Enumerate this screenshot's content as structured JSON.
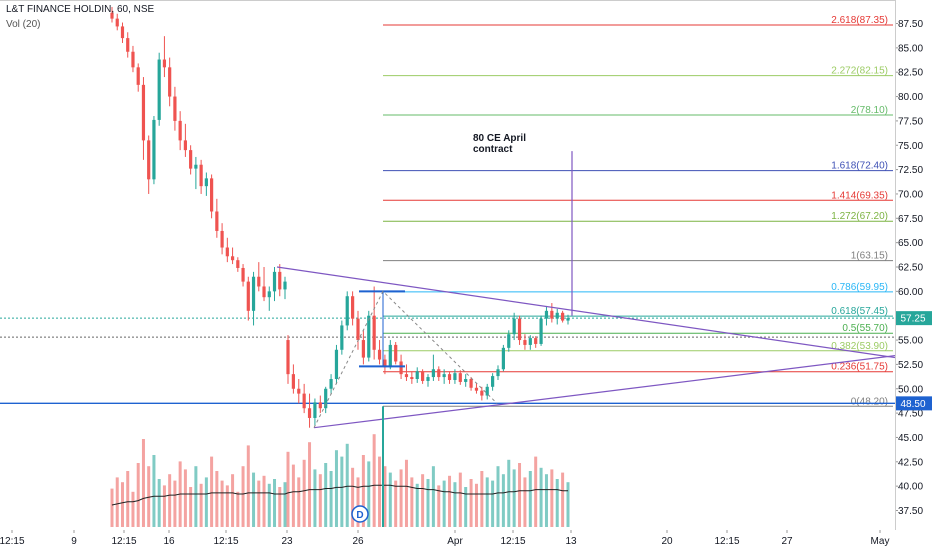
{
  "header": {
    "title": "L&T FINANCE HOLDIN, 60, NSE",
    "volume_label": "Vol (20)"
  },
  "annotation": {
    "line1": "80 CE April",
    "line2": "contract"
  },
  "price_tags": {
    "last": "57.25",
    "support": "48.50"
  },
  "event_badge": "D",
  "colors": {
    "up": "#26a69a",
    "down": "#ef5350",
    "vol_up": "#80cbc4",
    "vol_down": "#f4a3a1",
    "triangle": "#7e57c2",
    "support": "#1e62d0",
    "box": "#1e62d0"
  },
  "chart_data": {
    "type": "candlestick",
    "symbol": "L&T FINANCE HOLDIN",
    "interval": "60",
    "exchange": "NSE",
    "y_axis": {
      "ylim": [
        35.5,
        89.5
      ],
      "ticks": [
        "37.50",
        "40.00",
        "42.50",
        "45.00",
        "47.50",
        "50.00",
        "52.50",
        "55.00",
        "57.50",
        "60.00",
        "62.50",
        "65.00",
        "67.50",
        "70.00",
        "72.50",
        "75.00",
        "77.50",
        "80.00",
        "82.50",
        "85.00",
        "87.50"
      ]
    },
    "x_axis": {
      "ticks": [
        "12:15",
        "9",
        "12:15",
        "16",
        "12:15",
        "23",
        "26",
        "Apr",
        "12:15",
        "13",
        "20",
        "12:15",
        "27",
        "May"
      ]
    },
    "fibonacci_levels": [
      {
        "label": "2.618(87.35)",
        "value": 87.35,
        "color": "#e53935"
      },
      {
        "label": "2.272(82.15)",
        "value": 82.15,
        "color": "#9ccc65"
      },
      {
        "label": "2(78.10)",
        "value": 78.1,
        "color": "#66bb6a"
      },
      {
        "label": "1.618(72.40)",
        "value": 72.4,
        "color": "#3f51b5"
      },
      {
        "label": "1.414(69.35)",
        "value": 69.35,
        "color": "#e53935"
      },
      {
        "label": "1.272(67.20)",
        "value": 67.2,
        "color": "#7cb342"
      },
      {
        "label": "1(63.15)",
        "value": 63.15,
        "color": "#808080"
      },
      {
        "label": "0.786(59.95)",
        "value": 59.95,
        "color": "#29b6f6"
      },
      {
        "label": "0.618(57.45)",
        "value": 57.45,
        "color": "#26a69a"
      },
      {
        "label": "0.5(55.70)",
        "value": 55.7,
        "color": "#4caf50"
      },
      {
        "label": "0.382(53.90)",
        "value": 53.9,
        "color": "#9ccc65"
      },
      {
        "label": "0.236(51.75)",
        "value": 51.75,
        "color": "#e53935"
      },
      {
        "label": "0(48.20)",
        "value": 48.2,
        "color": "#808080"
      }
    ],
    "last_price": 57.25,
    "support_level": 48.5,
    "candles": [
      {
        "o": 88.6,
        "h": 89.2,
        "l": 87.6,
        "c": 88.0
      },
      {
        "o": 88.0,
        "h": 88.5,
        "l": 86.8,
        "c": 87.2
      },
      {
        "o": 87.2,
        "h": 87.6,
        "l": 85.5,
        "c": 86.0
      },
      {
        "o": 86.0,
        "h": 86.6,
        "l": 84.0,
        "c": 84.6
      },
      {
        "o": 84.6,
        "h": 85.2,
        "l": 82.5,
        "c": 83.0
      },
      {
        "o": 83.0,
        "h": 83.4,
        "l": 80.5,
        "c": 81.2
      },
      {
        "o": 81.2,
        "h": 82.0,
        "l": 73.5,
        "c": 75.5
      },
      {
        "o": 75.5,
        "h": 76.0,
        "l": 70.0,
        "c": 71.5
      },
      {
        "o": 71.5,
        "h": 78.0,
        "l": 71.0,
        "c": 77.6
      },
      {
        "o": 77.6,
        "h": 84.5,
        "l": 77.0,
        "c": 83.8
      },
      {
        "o": 83.8,
        "h": 86.2,
        "l": 82.0,
        "c": 83.0
      },
      {
        "o": 83.0,
        "h": 84.0,
        "l": 79.0,
        "c": 80.0
      },
      {
        "o": 80.0,
        "h": 81.0,
        "l": 76.5,
        "c": 77.5
      },
      {
        "o": 77.5,
        "h": 78.5,
        "l": 74.5,
        "c": 75.5
      },
      {
        "o": 75.5,
        "h": 77.2,
        "l": 73.8,
        "c": 74.5
      },
      {
        "o": 74.5,
        "h": 75.0,
        "l": 72.0,
        "c": 72.6
      },
      {
        "o": 72.6,
        "h": 73.8,
        "l": 70.5,
        "c": 73.0
      },
      {
        "o": 73.0,
        "h": 73.5,
        "l": 70.0,
        "c": 70.8
      },
      {
        "o": 70.8,
        "h": 72.2,
        "l": 69.8,
        "c": 71.6
      },
      {
        "o": 71.6,
        "h": 72.0,
        "l": 67.5,
        "c": 68.2
      },
      {
        "o": 68.2,
        "h": 69.5,
        "l": 65.5,
        "c": 66.2
      },
      {
        "o": 66.2,
        "h": 67.0,
        "l": 63.8,
        "c": 64.5
      },
      {
        "o": 64.5,
        "h": 65.5,
        "l": 63.0,
        "c": 63.6
      },
      {
        "o": 63.6,
        "h": 64.5,
        "l": 62.8,
        "c": 63.2
      },
      {
        "o": 63.2,
        "h": 63.5,
        "l": 62.0,
        "c": 62.4
      },
      {
        "o": 62.4,
        "h": 62.8,
        "l": 60.5,
        "c": 61.0
      },
      {
        "o": 61.0,
        "h": 61.5,
        "l": 57.0,
        "c": 58.0
      },
      {
        "o": 58.0,
        "h": 62.0,
        "l": 56.5,
        "c": 61.5
      },
      {
        "o": 61.5,
        "h": 63.0,
        "l": 60.0,
        "c": 60.5
      },
      {
        "o": 60.5,
        "h": 62.5,
        "l": 59.0,
        "c": 59.4
      },
      {
        "o": 59.4,
        "h": 60.5,
        "l": 58.0,
        "c": 60.0
      },
      {
        "o": 60.0,
        "h": 62.5,
        "l": 59.0,
        "c": 62.0
      },
      {
        "o": 62.0,
        "h": 62.8,
        "l": 59.5,
        "c": 60.2
      },
      {
        "o": 60.2,
        "h": 61.5,
        "l": 59.2,
        "c": 61.0
      },
      {
        "o": 55.0,
        "h": 55.5,
        "l": 50.5,
        "c": 51.5
      },
      {
        "o": 51.5,
        "h": 52.5,
        "l": 49.5,
        "c": 50.0
      },
      {
        "o": 50.0,
        "h": 51.0,
        "l": 48.5,
        "c": 49.5
      },
      {
        "o": 49.5,
        "h": 50.5,
        "l": 47.5,
        "c": 48.0
      },
      {
        "o": 48.0,
        "h": 49.5,
        "l": 46.0,
        "c": 47.0
      },
      {
        "o": 47.0,
        "h": 49.0,
        "l": 46.2,
        "c": 48.6
      },
      {
        "o": 48.6,
        "h": 49.3,
        "l": 47.5,
        "c": 48.0
      },
      {
        "o": 48.0,
        "h": 50.2,
        "l": 47.5,
        "c": 50.0
      },
      {
        "o": 50.0,
        "h": 51.5,
        "l": 49.5,
        "c": 51.0
      },
      {
        "o": 51.0,
        "h": 54.5,
        "l": 50.5,
        "c": 54.0
      },
      {
        "o": 54.0,
        "h": 57.0,
        "l": 53.5,
        "c": 56.5
      },
      {
        "o": 56.5,
        "h": 60.0,
        "l": 56.0,
        "c": 59.5
      },
      {
        "o": 59.5,
        "h": 60.0,
        "l": 56.5,
        "c": 57.2
      },
      {
        "o": 57.2,
        "h": 58.0,
        "l": 54.0,
        "c": 55.0
      },
      {
        "o": 55.0,
        "h": 56.0,
        "l": 52.5,
        "c": 53.2
      },
      {
        "o": 53.2,
        "h": 58.0,
        "l": 52.8,
        "c": 57.5
      },
      {
        "o": 57.5,
        "h": 60.5,
        "l": 53.0,
        "c": 54.0
      },
      {
        "o": 54.0,
        "h": 55.0,
        "l": 52.5,
        "c": 53.0
      },
      {
        "o": 53.0,
        "h": 53.5,
        "l": 51.5,
        "c": 52.2
      },
      {
        "o": 52.2,
        "h": 55.0,
        "l": 52.0,
        "c": 54.5
      },
      {
        "o": 54.5,
        "h": 54.8,
        "l": 52.5,
        "c": 52.8
      },
      {
        "o": 52.8,
        "h": 53.5,
        "l": 51.0,
        "c": 51.5
      },
      {
        "o": 51.5,
        "h": 52.5,
        "l": 50.8,
        "c": 51.2
      },
      {
        "o": 51.2,
        "h": 51.8,
        "l": 50.5,
        "c": 51.0
      },
      {
        "o": 51.0,
        "h": 52.2,
        "l": 50.6,
        "c": 51.8
      },
      {
        "o": 51.8,
        "h": 52.0,
        "l": 50.5,
        "c": 50.8
      },
      {
        "o": 50.8,
        "h": 51.5,
        "l": 50.2,
        "c": 51.2
      },
      {
        "o": 51.2,
        "h": 53.5,
        "l": 50.8,
        "c": 52.0
      },
      {
        "o": 52.0,
        "h": 52.3,
        "l": 50.8,
        "c": 51.2
      },
      {
        "o": 51.2,
        "h": 52.0,
        "l": 50.5,
        "c": 51.5
      },
      {
        "o": 51.5,
        "h": 51.8,
        "l": 50.5,
        "c": 50.9
      },
      {
        "o": 50.9,
        "h": 52.0,
        "l": 50.5,
        "c": 51.6
      },
      {
        "o": 51.6,
        "h": 51.9,
        "l": 50.4,
        "c": 50.7
      },
      {
        "o": 50.7,
        "h": 51.5,
        "l": 50.2,
        "c": 51.0
      },
      {
        "o": 51.0,
        "h": 51.2,
        "l": 49.8,
        "c": 50.1
      },
      {
        "o": 50.1,
        "h": 50.6,
        "l": 49.5,
        "c": 49.8
      },
      {
        "o": 49.8,
        "h": 50.2,
        "l": 48.8,
        "c": 49.3
      },
      {
        "o": 49.3,
        "h": 50.5,
        "l": 48.9,
        "c": 50.2
      },
      {
        "o": 50.2,
        "h": 51.6,
        "l": 49.8,
        "c": 51.3
      },
      {
        "o": 51.3,
        "h": 52.4,
        "l": 50.9,
        "c": 52.0
      },
      {
        "o": 52.0,
        "h": 54.5,
        "l": 51.8,
        "c": 54.2
      },
      {
        "o": 54.2,
        "h": 56.0,
        "l": 53.8,
        "c": 55.6
      },
      {
        "o": 55.6,
        "h": 57.8,
        "l": 55.0,
        "c": 57.2
      },
      {
        "o": 57.2,
        "h": 57.5,
        "l": 54.5,
        "c": 55.0
      },
      {
        "o": 55.0,
        "h": 55.6,
        "l": 54.0,
        "c": 54.5
      },
      {
        "o": 54.5,
        "h": 55.5,
        "l": 54.0,
        "c": 55.2
      },
      {
        "o": 55.2,
        "h": 55.4,
        "l": 54.2,
        "c": 54.6
      },
      {
        "o": 54.6,
        "h": 57.5,
        "l": 54.4,
        "c": 57.2
      },
      {
        "o": 57.2,
        "h": 58.5,
        "l": 56.5,
        "c": 58.0
      },
      {
        "o": 58.0,
        "h": 58.8,
        "l": 56.8,
        "c": 57.2
      },
      {
        "o": 57.2,
        "h": 58.2,
        "l": 56.6,
        "c": 57.8
      },
      {
        "o": 57.8,
        "h": 58.0,
        "l": 56.8,
        "c": 57.0
      },
      {
        "o": 57.0,
        "h": 57.6,
        "l": 56.6,
        "c": 57.25
      }
    ],
    "volume": [
      24,
      31,
      28,
      35,
      22,
      40,
      55,
      38,
      45,
      30,
      26,
      33,
      29,
      41,
      36,
      25,
      38,
      27,
      31,
      44,
      35,
      29,
      26,
      33,
      22,
      38,
      51,
      34,
      29,
      32,
      27,
      30,
      25,
      28,
      47,
      39,
      31,
      42,
      53,
      36,
      33,
      40,
      35,
      48,
      44,
      52,
      37,
      31,
      45,
      41,
      58,
      44,
      38,
      34,
      29,
      36,
      42,
      31,
      27,
      33,
      30,
      38,
      26,
      29,
      32,
      28,
      34,
      25,
      30,
      27,
      35,
      31,
      29,
      38,
      33,
      42,
      36,
      40,
      31,
      35,
      44,
      37,
      33,
      36,
      30,
      34,
      28
    ],
    "volume_ma": [
      20,
      21,
      22,
      23,
      23,
      24,
      26,
      27,
      28,
      28,
      28,
      29,
      29,
      30,
      30,
      30,
      30,
      30,
      30,
      31,
      31,
      31,
      31,
      31,
      30,
      30,
      31,
      31,
      31,
      31,
      31,
      30,
      30,
      30,
      31,
      32,
      32,
      33,
      34,
      34,
      34,
      35,
      35,
      36,
      36,
      37,
      37,
      36,
      37,
      37,
      38,
      38,
      38,
      38,
      37,
      37,
      37,
      36,
      35,
      35,
      34,
      34,
      33,
      32,
      32,
      31,
      31,
      30,
      30,
      30,
      30,
      30,
      30,
      31,
      31,
      32,
      32,
      33,
      33,
      33,
      34,
      34,
      34,
      34,
      34,
      33,
      33
    ]
  }
}
